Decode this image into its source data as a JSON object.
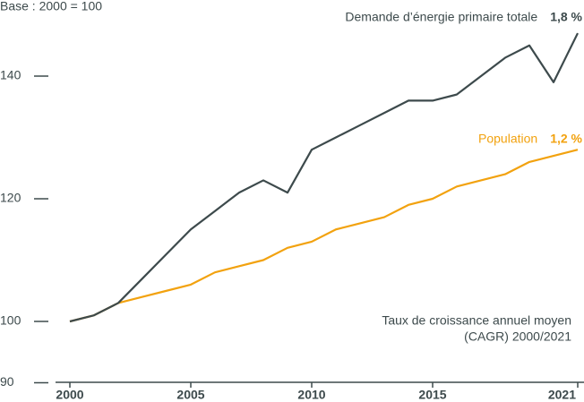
{
  "chart_data": {
    "type": "line",
    "subtitle": "Base : 2000 = 100",
    "x": [
      2000,
      2001,
      2002,
      2003,
      2004,
      2005,
      2006,
      2007,
      2008,
      2009,
      2010,
      2011,
      2012,
      2013,
      2014,
      2015,
      2016,
      2017,
      2018,
      2019,
      2020,
      2021
    ],
    "series": [
      {
        "name": "Demande d’énergie primaire totale",
        "rate": "1,8 %",
        "color": "#3d4a4c",
        "values": [
          100,
          101,
          103,
          107,
          111,
          115,
          118,
          121,
          123,
          121,
          128,
          130,
          132,
          134,
          136,
          136,
          137,
          140,
          143,
          145,
          139,
          147
        ]
      },
      {
        "name": "Population",
        "rate": "1,2 %",
        "color": "#f2a20f",
        "values": [
          100,
          101,
          103,
          104,
          105,
          106,
          108,
          109,
          110,
          112,
          113,
          115,
          116,
          117,
          119,
          120,
          122,
          123,
          124,
          126,
          127,
          128
        ]
      }
    ],
    "annotation": [
      "Taux de croissance annuel moyen",
      "(CAGR) 2000/2021"
    ],
    "xlim": [
      2000,
      2021
    ],
    "xticks": [
      2000,
      2005,
      2010,
      2015,
      2021
    ],
    "ylim": [
      90,
      150
    ],
    "yticks": [
      90,
      100,
      120,
      140
    ]
  }
}
